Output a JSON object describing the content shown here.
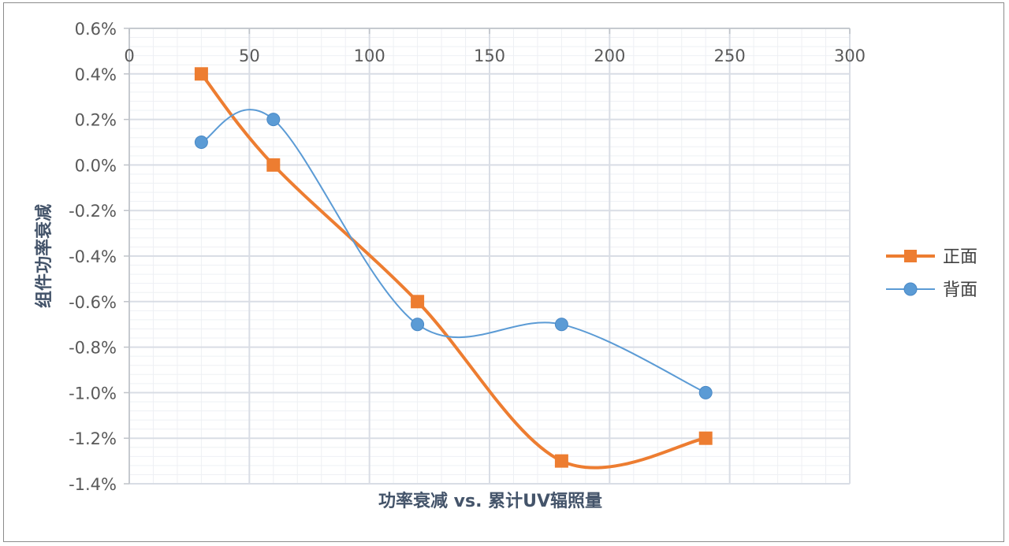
{
  "chart_data": {
    "type": "scatter",
    "title": "",
    "xlabel": "功率衰减 vs. 累计UV辐照量",
    "ylabel": "组件功率衰减",
    "xlim": [
      0,
      300
    ],
    "ylim": [
      -1.4,
      0.6
    ],
    "x_ticks": [
      0,
      50,
      100,
      150,
      200,
      250,
      300
    ],
    "x_tick_labels": [
      "0",
      "50",
      "100",
      "150",
      "200",
      "250",
      "300"
    ],
    "y_ticks": [
      0.6,
      0.4,
      0.2,
      0.0,
      -0.2,
      -0.4,
      -0.6,
      -0.8,
      -1.0,
      -1.2,
      -1.4
    ],
    "y_tick_labels": [
      "0.6%",
      "0.4%",
      "0.2%",
      "0.0%",
      "-0.2%",
      "-0.4%",
      "-0.6%",
      "-0.8%",
      "-1.0%",
      "-1.2%",
      "-1.4%"
    ],
    "x_axis_position": "top",
    "grid": true,
    "minor_grid": true,
    "smoothed_lines": true,
    "legend_position": "right",
    "series": [
      {
        "name": "正面",
        "color": "#ed7d31",
        "marker": "square",
        "x": [
          30,
          60,
          120,
          180,
          240
        ],
        "y": [
          0.4,
          0.0,
          -0.6,
          -1.3,
          -1.2
        ]
      },
      {
        "name": "背面",
        "color": "#5b9bd5",
        "marker": "circle",
        "x": [
          30,
          60,
          120,
          180,
          240
        ],
        "y": [
          0.1,
          0.2,
          -0.7,
          -0.7,
          -1.0
        ]
      }
    ]
  }
}
